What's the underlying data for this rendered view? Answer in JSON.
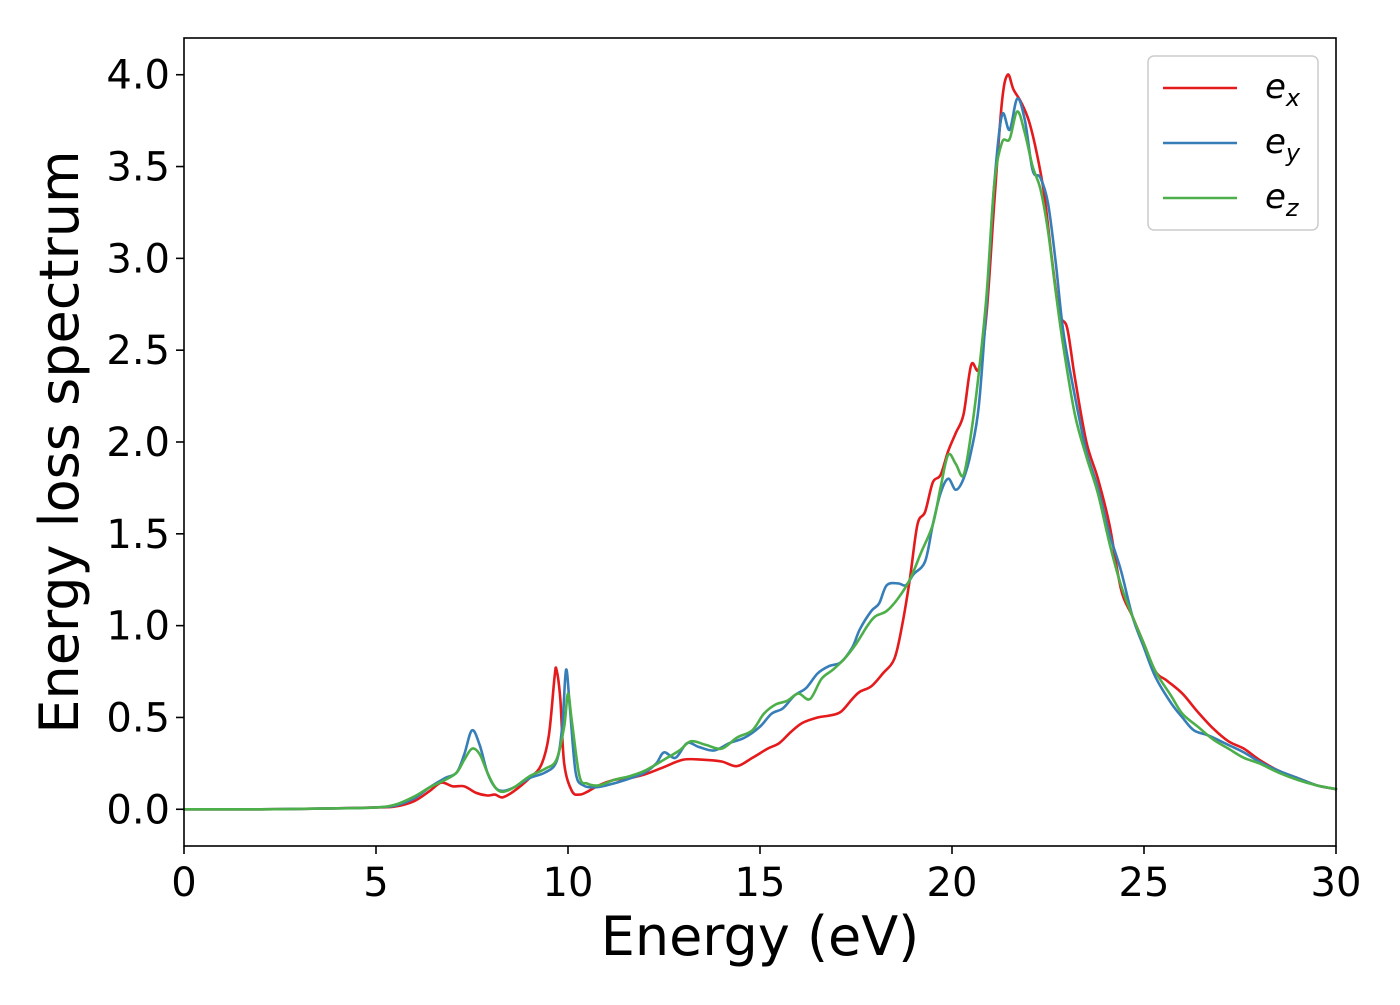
{
  "chart_data": {
    "type": "line",
    "xlabel": "Energy (eV)",
    "ylabel": "Energy loss spectrum",
    "xlim": [
      0,
      30
    ],
    "ylim": [
      -0.2,
      4.2
    ],
    "xticks": [
      0,
      5,
      10,
      15,
      20,
      25,
      30
    ],
    "yticks": [
      0.0,
      0.5,
      1.0,
      1.5,
      2.0,
      2.5,
      3.0,
      3.5,
      4.0
    ],
    "grid": false,
    "legend_position": "top-right",
    "series": [
      {
        "name": "e",
        "subscript": "x",
        "color": "#e41a1c",
        "points": [
          [
            0,
            0.0
          ],
          [
            2,
            0.0
          ],
          [
            4,
            0.005
          ],
          [
            5,
            0.01
          ],
          [
            5.5,
            0.015
          ],
          [
            6,
            0.045
          ],
          [
            6.4,
            0.1
          ],
          [
            6.7,
            0.145
          ],
          [
            7,
            0.125
          ],
          [
            7.3,
            0.125
          ],
          [
            7.6,
            0.09
          ],
          [
            7.9,
            0.075
          ],
          [
            8.1,
            0.08
          ],
          [
            8.3,
            0.065
          ],
          [
            8.6,
            0.1
          ],
          [
            9.0,
            0.17
          ],
          [
            9.3,
            0.24
          ],
          [
            9.5,
            0.4
          ],
          [
            9.65,
            0.72
          ],
          [
            9.7,
            0.76
          ],
          [
            9.8,
            0.6
          ],
          [
            9.9,
            0.25
          ],
          [
            10.1,
            0.1
          ],
          [
            10.3,
            0.08
          ],
          [
            10.5,
            0.095
          ],
          [
            10.8,
            0.13
          ],
          [
            11.2,
            0.16
          ],
          [
            11.6,
            0.17
          ],
          [
            12.0,
            0.19
          ],
          [
            12.5,
            0.23
          ],
          [
            13.0,
            0.27
          ],
          [
            13.5,
            0.27
          ],
          [
            14.0,
            0.26
          ],
          [
            14.4,
            0.235
          ],
          [
            14.8,
            0.28
          ],
          [
            15.2,
            0.33
          ],
          [
            15.5,
            0.36
          ],
          [
            15.8,
            0.42
          ],
          [
            16.1,
            0.47
          ],
          [
            16.5,
            0.5
          ],
          [
            16.8,
            0.51
          ],
          [
            17.1,
            0.53
          ],
          [
            17.4,
            0.6
          ],
          [
            17.6,
            0.64
          ],
          [
            17.9,
            0.67
          ],
          [
            18.2,
            0.74
          ],
          [
            18.5,
            0.82
          ],
          [
            18.7,
            1.0
          ],
          [
            18.9,
            1.25
          ],
          [
            19.1,
            1.55
          ],
          [
            19.3,
            1.62
          ],
          [
            19.5,
            1.78
          ],
          [
            19.7,
            1.82
          ],
          [
            19.9,
            1.95
          ],
          [
            20.1,
            2.05
          ],
          [
            20.3,
            2.15
          ],
          [
            20.5,
            2.42
          ],
          [
            20.7,
            2.4
          ],
          [
            20.9,
            2.7
          ],
          [
            21.1,
            3.3
          ],
          [
            21.3,
            3.85
          ],
          [
            21.45,
            4.0
          ],
          [
            21.6,
            3.92
          ],
          [
            21.8,
            3.85
          ],
          [
            22.0,
            3.75
          ],
          [
            22.2,
            3.58
          ],
          [
            22.4,
            3.35
          ],
          [
            22.6,
            3.0
          ],
          [
            22.8,
            2.7
          ],
          [
            23.0,
            2.62
          ],
          [
            23.2,
            2.35
          ],
          [
            23.5,
            2.0
          ],
          [
            23.8,
            1.8
          ],
          [
            24.1,
            1.55
          ],
          [
            24.4,
            1.2
          ],
          [
            24.7,
            1.05
          ],
          [
            25.0,
            0.9
          ],
          [
            25.3,
            0.75
          ],
          [
            25.6,
            0.7
          ],
          [
            26.0,
            0.63
          ],
          [
            26.4,
            0.53
          ],
          [
            26.8,
            0.44
          ],
          [
            27.2,
            0.37
          ],
          [
            27.6,
            0.33
          ],
          [
            28.0,
            0.27
          ],
          [
            28.5,
            0.21
          ],
          [
            29.0,
            0.17
          ],
          [
            29.5,
            0.13
          ],
          [
            30.0,
            0.11
          ]
        ]
      },
      {
        "name": "e",
        "subscript": "y",
        "color": "#377eb8",
        "points": [
          [
            0,
            0.0
          ],
          [
            2,
            0.0
          ],
          [
            4,
            0.005
          ],
          [
            5,
            0.01
          ],
          [
            5.5,
            0.02
          ],
          [
            6,
            0.06
          ],
          [
            6.4,
            0.12
          ],
          [
            6.8,
            0.17
          ],
          [
            7.1,
            0.2
          ],
          [
            7.3,
            0.3
          ],
          [
            7.5,
            0.43
          ],
          [
            7.7,
            0.35
          ],
          [
            7.9,
            0.2
          ],
          [
            8.1,
            0.12
          ],
          [
            8.3,
            0.1
          ],
          [
            8.6,
            0.12
          ],
          [
            9.0,
            0.17
          ],
          [
            9.4,
            0.2
          ],
          [
            9.7,
            0.26
          ],
          [
            9.85,
            0.45
          ],
          [
            9.95,
            0.76
          ],
          [
            10.05,
            0.55
          ],
          [
            10.2,
            0.2
          ],
          [
            10.4,
            0.13
          ],
          [
            10.7,
            0.12
          ],
          [
            11.0,
            0.13
          ],
          [
            11.5,
            0.16
          ],
          [
            12.0,
            0.2
          ],
          [
            12.3,
            0.25
          ],
          [
            12.5,
            0.31
          ],
          [
            12.8,
            0.28
          ],
          [
            13.1,
            0.36
          ],
          [
            13.4,
            0.34
          ],
          [
            13.8,
            0.32
          ],
          [
            14.2,
            0.36
          ],
          [
            14.6,
            0.39
          ],
          [
            15.0,
            0.45
          ],
          [
            15.3,
            0.52
          ],
          [
            15.6,
            0.55
          ],
          [
            15.9,
            0.62
          ],
          [
            16.2,
            0.66
          ],
          [
            16.5,
            0.74
          ],
          [
            16.8,
            0.78
          ],
          [
            17.1,
            0.8
          ],
          [
            17.4,
            0.88
          ],
          [
            17.6,
            0.98
          ],
          [
            17.9,
            1.08
          ],
          [
            18.1,
            1.12
          ],
          [
            18.3,
            1.22
          ],
          [
            18.6,
            1.23
          ],
          [
            18.8,
            1.22
          ],
          [
            19.0,
            1.28
          ],
          [
            19.3,
            1.35
          ],
          [
            19.5,
            1.55
          ],
          [
            19.7,
            1.72
          ],
          [
            19.9,
            1.8
          ],
          [
            20.1,
            1.74
          ],
          [
            20.3,
            1.8
          ],
          [
            20.5,
            1.95
          ],
          [
            20.7,
            2.2
          ],
          [
            20.9,
            2.75
          ],
          [
            21.1,
            3.4
          ],
          [
            21.3,
            3.78
          ],
          [
            21.5,
            3.7
          ],
          [
            21.7,
            3.87
          ],
          [
            21.9,
            3.75
          ],
          [
            22.1,
            3.48
          ],
          [
            22.3,
            3.44
          ],
          [
            22.5,
            3.3
          ],
          [
            22.7,
            2.98
          ],
          [
            22.9,
            2.6
          ],
          [
            23.2,
            2.25
          ],
          [
            23.5,
            1.95
          ],
          [
            23.8,
            1.75
          ],
          [
            24.1,
            1.5
          ],
          [
            24.4,
            1.3
          ],
          [
            24.7,
            1.05
          ],
          [
            25.0,
            0.88
          ],
          [
            25.3,
            0.72
          ],
          [
            25.7,
            0.58
          ],
          [
            26.0,
            0.5
          ],
          [
            26.3,
            0.43
          ],
          [
            26.7,
            0.4
          ],
          [
            27.2,
            0.35
          ],
          [
            27.6,
            0.31
          ],
          [
            28.0,
            0.26
          ],
          [
            28.5,
            0.21
          ],
          [
            29.0,
            0.17
          ],
          [
            29.5,
            0.13
          ],
          [
            30.0,
            0.11
          ]
        ]
      },
      {
        "name": "e",
        "subscript": "z",
        "color": "#4daf4a",
        "points": [
          [
            0,
            0.0
          ],
          [
            2,
            0.0
          ],
          [
            4,
            0.005
          ],
          [
            5,
            0.01
          ],
          [
            5.5,
            0.025
          ],
          [
            6,
            0.07
          ],
          [
            6.4,
            0.12
          ],
          [
            6.8,
            0.16
          ],
          [
            7.1,
            0.2
          ],
          [
            7.3,
            0.27
          ],
          [
            7.5,
            0.33
          ],
          [
            7.7,
            0.3
          ],
          [
            7.9,
            0.2
          ],
          [
            8.1,
            0.12
          ],
          [
            8.3,
            0.095
          ],
          [
            8.6,
            0.12
          ],
          [
            9.0,
            0.18
          ],
          [
            9.4,
            0.22
          ],
          [
            9.7,
            0.27
          ],
          [
            9.9,
            0.45
          ],
          [
            10.0,
            0.63
          ],
          [
            10.1,
            0.48
          ],
          [
            10.3,
            0.18
          ],
          [
            10.5,
            0.14
          ],
          [
            10.8,
            0.13
          ],
          [
            11.2,
            0.16
          ],
          [
            11.6,
            0.18
          ],
          [
            12.0,
            0.21
          ],
          [
            12.5,
            0.27
          ],
          [
            12.9,
            0.32
          ],
          [
            13.2,
            0.37
          ],
          [
            13.6,
            0.35
          ],
          [
            14.0,
            0.33
          ],
          [
            14.4,
            0.39
          ],
          [
            14.8,
            0.43
          ],
          [
            15.1,
            0.52
          ],
          [
            15.4,
            0.57
          ],
          [
            15.7,
            0.59
          ],
          [
            16.0,
            0.63
          ],
          [
            16.3,
            0.6
          ],
          [
            16.6,
            0.71
          ],
          [
            16.9,
            0.76
          ],
          [
            17.2,
            0.82
          ],
          [
            17.5,
            0.9
          ],
          [
            17.8,
            1.0
          ],
          [
            18.0,
            1.05
          ],
          [
            18.3,
            1.08
          ],
          [
            18.6,
            1.15
          ],
          [
            18.9,
            1.25
          ],
          [
            19.2,
            1.4
          ],
          [
            19.5,
            1.55
          ],
          [
            19.7,
            1.75
          ],
          [
            19.9,
            1.93
          ],
          [
            20.1,
            1.88
          ],
          [
            20.3,
            1.82
          ],
          [
            20.5,
            2.05
          ],
          [
            20.7,
            2.38
          ],
          [
            20.9,
            2.8
          ],
          [
            21.1,
            3.4
          ],
          [
            21.3,
            3.63
          ],
          [
            21.5,
            3.65
          ],
          [
            21.7,
            3.8
          ],
          [
            21.9,
            3.68
          ],
          [
            22.1,
            3.5
          ],
          [
            22.3,
            3.38
          ],
          [
            22.5,
            3.15
          ],
          [
            22.7,
            2.82
          ],
          [
            22.9,
            2.52
          ],
          [
            23.2,
            2.15
          ],
          [
            23.5,
            1.92
          ],
          [
            23.8,
            1.72
          ],
          [
            24.1,
            1.45
          ],
          [
            24.4,
            1.22
          ],
          [
            24.7,
            1.05
          ],
          [
            25.0,
            0.9
          ],
          [
            25.3,
            0.75
          ],
          [
            25.7,
            0.62
          ],
          [
            26.0,
            0.52
          ],
          [
            26.4,
            0.45
          ],
          [
            26.8,
            0.38
          ],
          [
            27.2,
            0.33
          ],
          [
            27.6,
            0.28
          ],
          [
            28.0,
            0.25
          ],
          [
            28.5,
            0.2
          ],
          [
            29.0,
            0.16
          ],
          [
            29.5,
            0.13
          ],
          [
            30.0,
            0.11
          ]
        ]
      }
    ]
  }
}
